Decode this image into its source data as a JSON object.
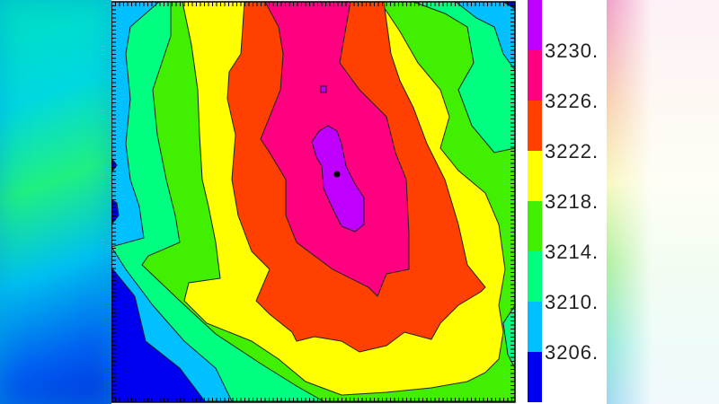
{
  "chart_data": {
    "type": "heatmap",
    "subtype": "filled-contour",
    "title": "",
    "xlabel": "",
    "ylabel": "",
    "grid": false,
    "colorbar": {
      "placement": "right",
      "levels": [
        {
          "label": "3206.",
          "color": "#0000f0"
        },
        {
          "label": "3210.",
          "color": "#00c0ff"
        },
        {
          "label": "3214.",
          "color": "#00ff80"
        },
        {
          "label": "3218.",
          "color": "#40f000"
        },
        {
          "label": "3222.",
          "color": "#ffff00"
        },
        {
          "label": "3226.",
          "color": "#ff4000"
        },
        {
          "label": "3230.",
          "color": "#ff0080"
        }
      ],
      "top_color": "#c000ff"
    },
    "peak_marker": "black-dot",
    "colors": {
      "blue": "#0000f0",
      "cyan": "#00c0ff",
      "spring": "#00ff80",
      "green": "#40f000",
      "yellow": "#ffff00",
      "orange": "#ff4000",
      "pink": "#ff0080",
      "purple": "#c000ff"
    }
  }
}
